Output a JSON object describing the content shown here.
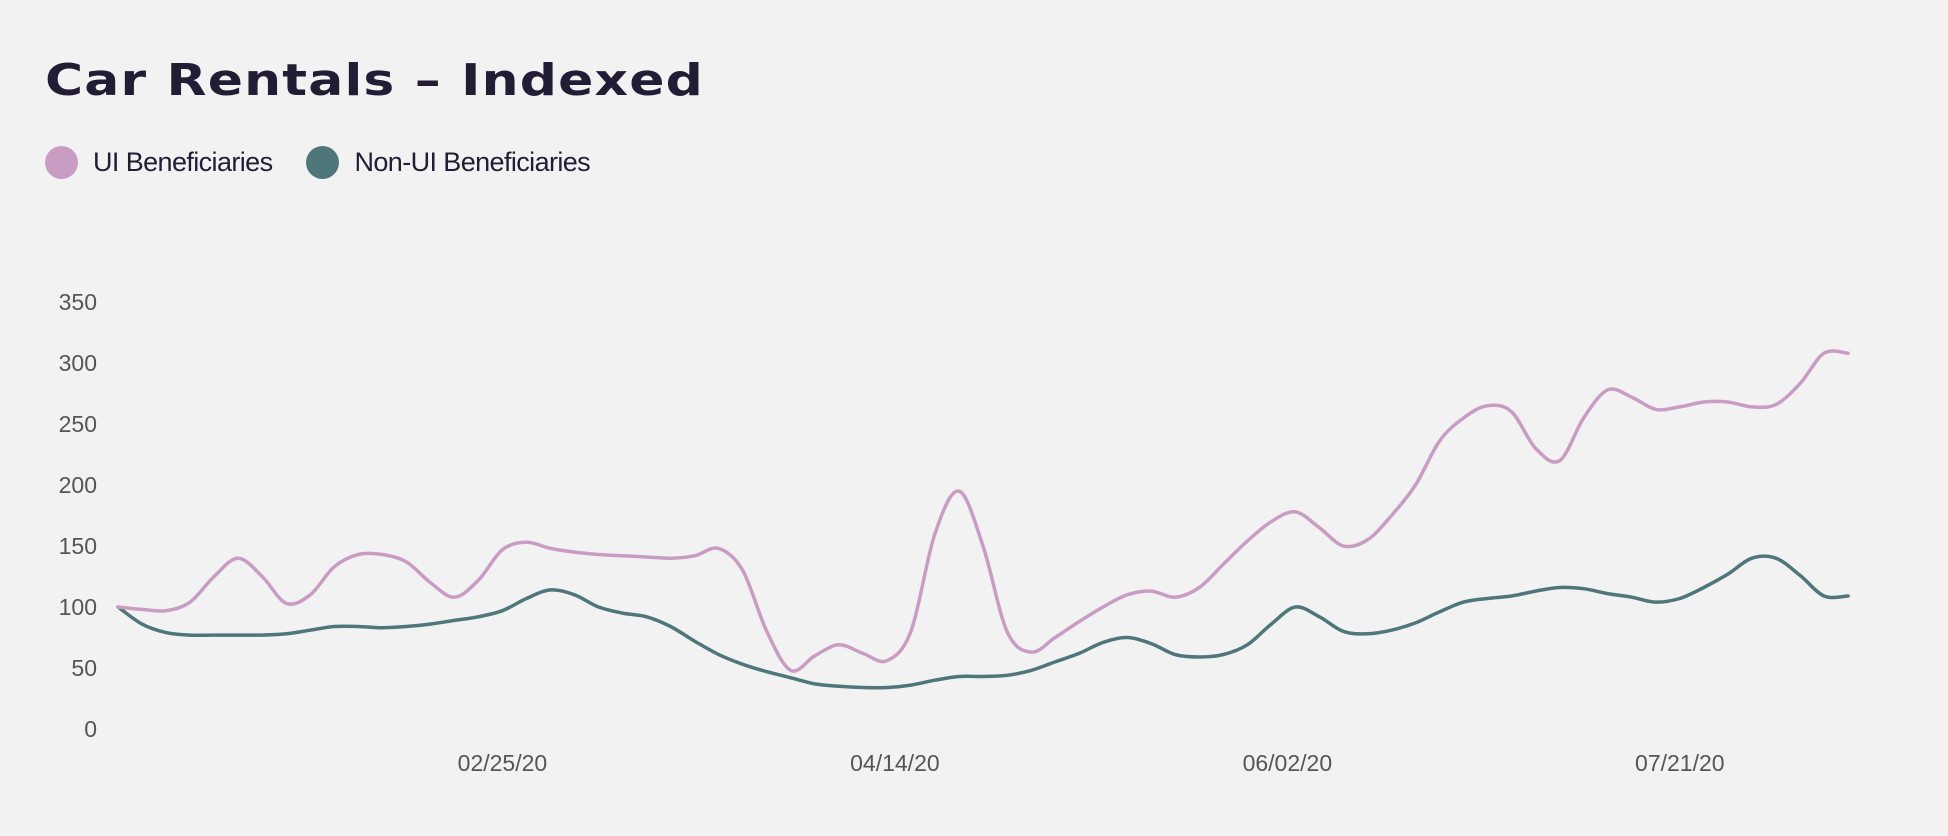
{
  "chart_data": {
    "type": "line",
    "title": "Car Rentals – Indexed",
    "xlabel": "",
    "ylabel": "",
    "x_ticks": [
      "02/25/20",
      "04/14/20",
      "06/02/20",
      "07/21/20"
    ],
    "y_ticks": [
      0,
      50,
      100,
      150,
      200,
      250,
      300,
      350
    ],
    "ylim": [
      0,
      350
    ],
    "xlim": [
      "01/08/20",
      "08/11/20"
    ],
    "grid": false,
    "legend_position": "top-left",
    "x": [
      "01/08/20",
      "01/11/20",
      "01/14/20",
      "01/17/20",
      "01/20/20",
      "01/23/20",
      "01/26/20",
      "01/29/20",
      "02/01/20",
      "02/04/20",
      "02/07/20",
      "02/10/20",
      "02/13/20",
      "02/16/20",
      "02/19/20",
      "02/22/20",
      "02/25/20",
      "02/28/20",
      "03/02/20",
      "03/05/20",
      "03/08/20",
      "03/11/20",
      "03/14/20",
      "03/17/20",
      "03/20/20",
      "03/23/20",
      "03/26/20",
      "03/29/20",
      "04/01/20",
      "04/04/20",
      "04/07/20",
      "04/10/20",
      "04/13/20",
      "04/16/20",
      "04/19/20",
      "04/22/20",
      "04/25/20",
      "04/28/20",
      "05/01/20",
      "05/04/20",
      "05/07/20",
      "05/10/20",
      "05/13/20",
      "05/16/20",
      "05/19/20",
      "05/22/20",
      "05/25/20",
      "05/28/20",
      "05/31/20",
      "06/03/20",
      "06/06/20",
      "06/09/20",
      "06/12/20",
      "06/15/20",
      "06/18/20",
      "06/21/20",
      "06/24/20",
      "06/27/20",
      "06/30/20",
      "07/03/20",
      "07/06/20",
      "07/09/20",
      "07/12/20",
      "07/15/20",
      "07/18/20",
      "07/21/20",
      "07/24/20",
      "07/27/20",
      "07/30/20",
      "08/02/20",
      "08/05/20",
      "08/08/20",
      "08/11/20"
    ],
    "series": [
      {
        "name": "UI Beneficiaries",
        "color": "#c99cc4",
        "values": [
          100,
          98,
          97,
          104,
          125,
          140,
          125,
          103,
          110,
          133,
          143,
          143,
          137,
          120,
          108,
          122,
          147,
          153,
          148,
          145,
          143,
          142,
          141,
          140,
          142,
          148,
          130,
          80,
          48,
          60,
          69,
          62,
          56,
          80,
          160,
          195,
          150,
          80,
          63,
          75,
          88,
          100,
          110,
          113,
          108,
          116,
          135,
          154,
          170,
          178,
          165,
          150,
          155,
          175,
          200,
          236,
          255,
          265,
          260,
          230,
          220,
          255,
          278,
          272,
          262,
          264,
          268,
          268,
          264,
          266,
          283,
          308,
          308
        ]
      },
      {
        "name": "Non-UI Beneficiaries",
        "color": "#4f767a",
        "values": [
          100,
          86,
          79,
          77,
          77,
          77,
          77,
          78,
          81,
          84,
          84,
          83,
          84,
          86,
          89,
          92,
          97,
          107,
          114,
          110,
          100,
          95,
          92,
          84,
          72,
          61,
          53,
          47,
          42,
          37,
          35,
          34,
          34,
          36,
          40,
          43,
          43,
          44,
          48,
          55,
          62,
          71,
          75,
          70,
          61,
          59,
          61,
          69,
          86,
          100,
          92,
          80,
          78,
          81,
          87,
          96,
          104,
          107,
          109,
          113,
          116,
          115,
          111,
          108,
          104,
          107,
          116,
          127,
          140,
          140,
          126,
          109,
          109
        ]
      }
    ]
  }
}
